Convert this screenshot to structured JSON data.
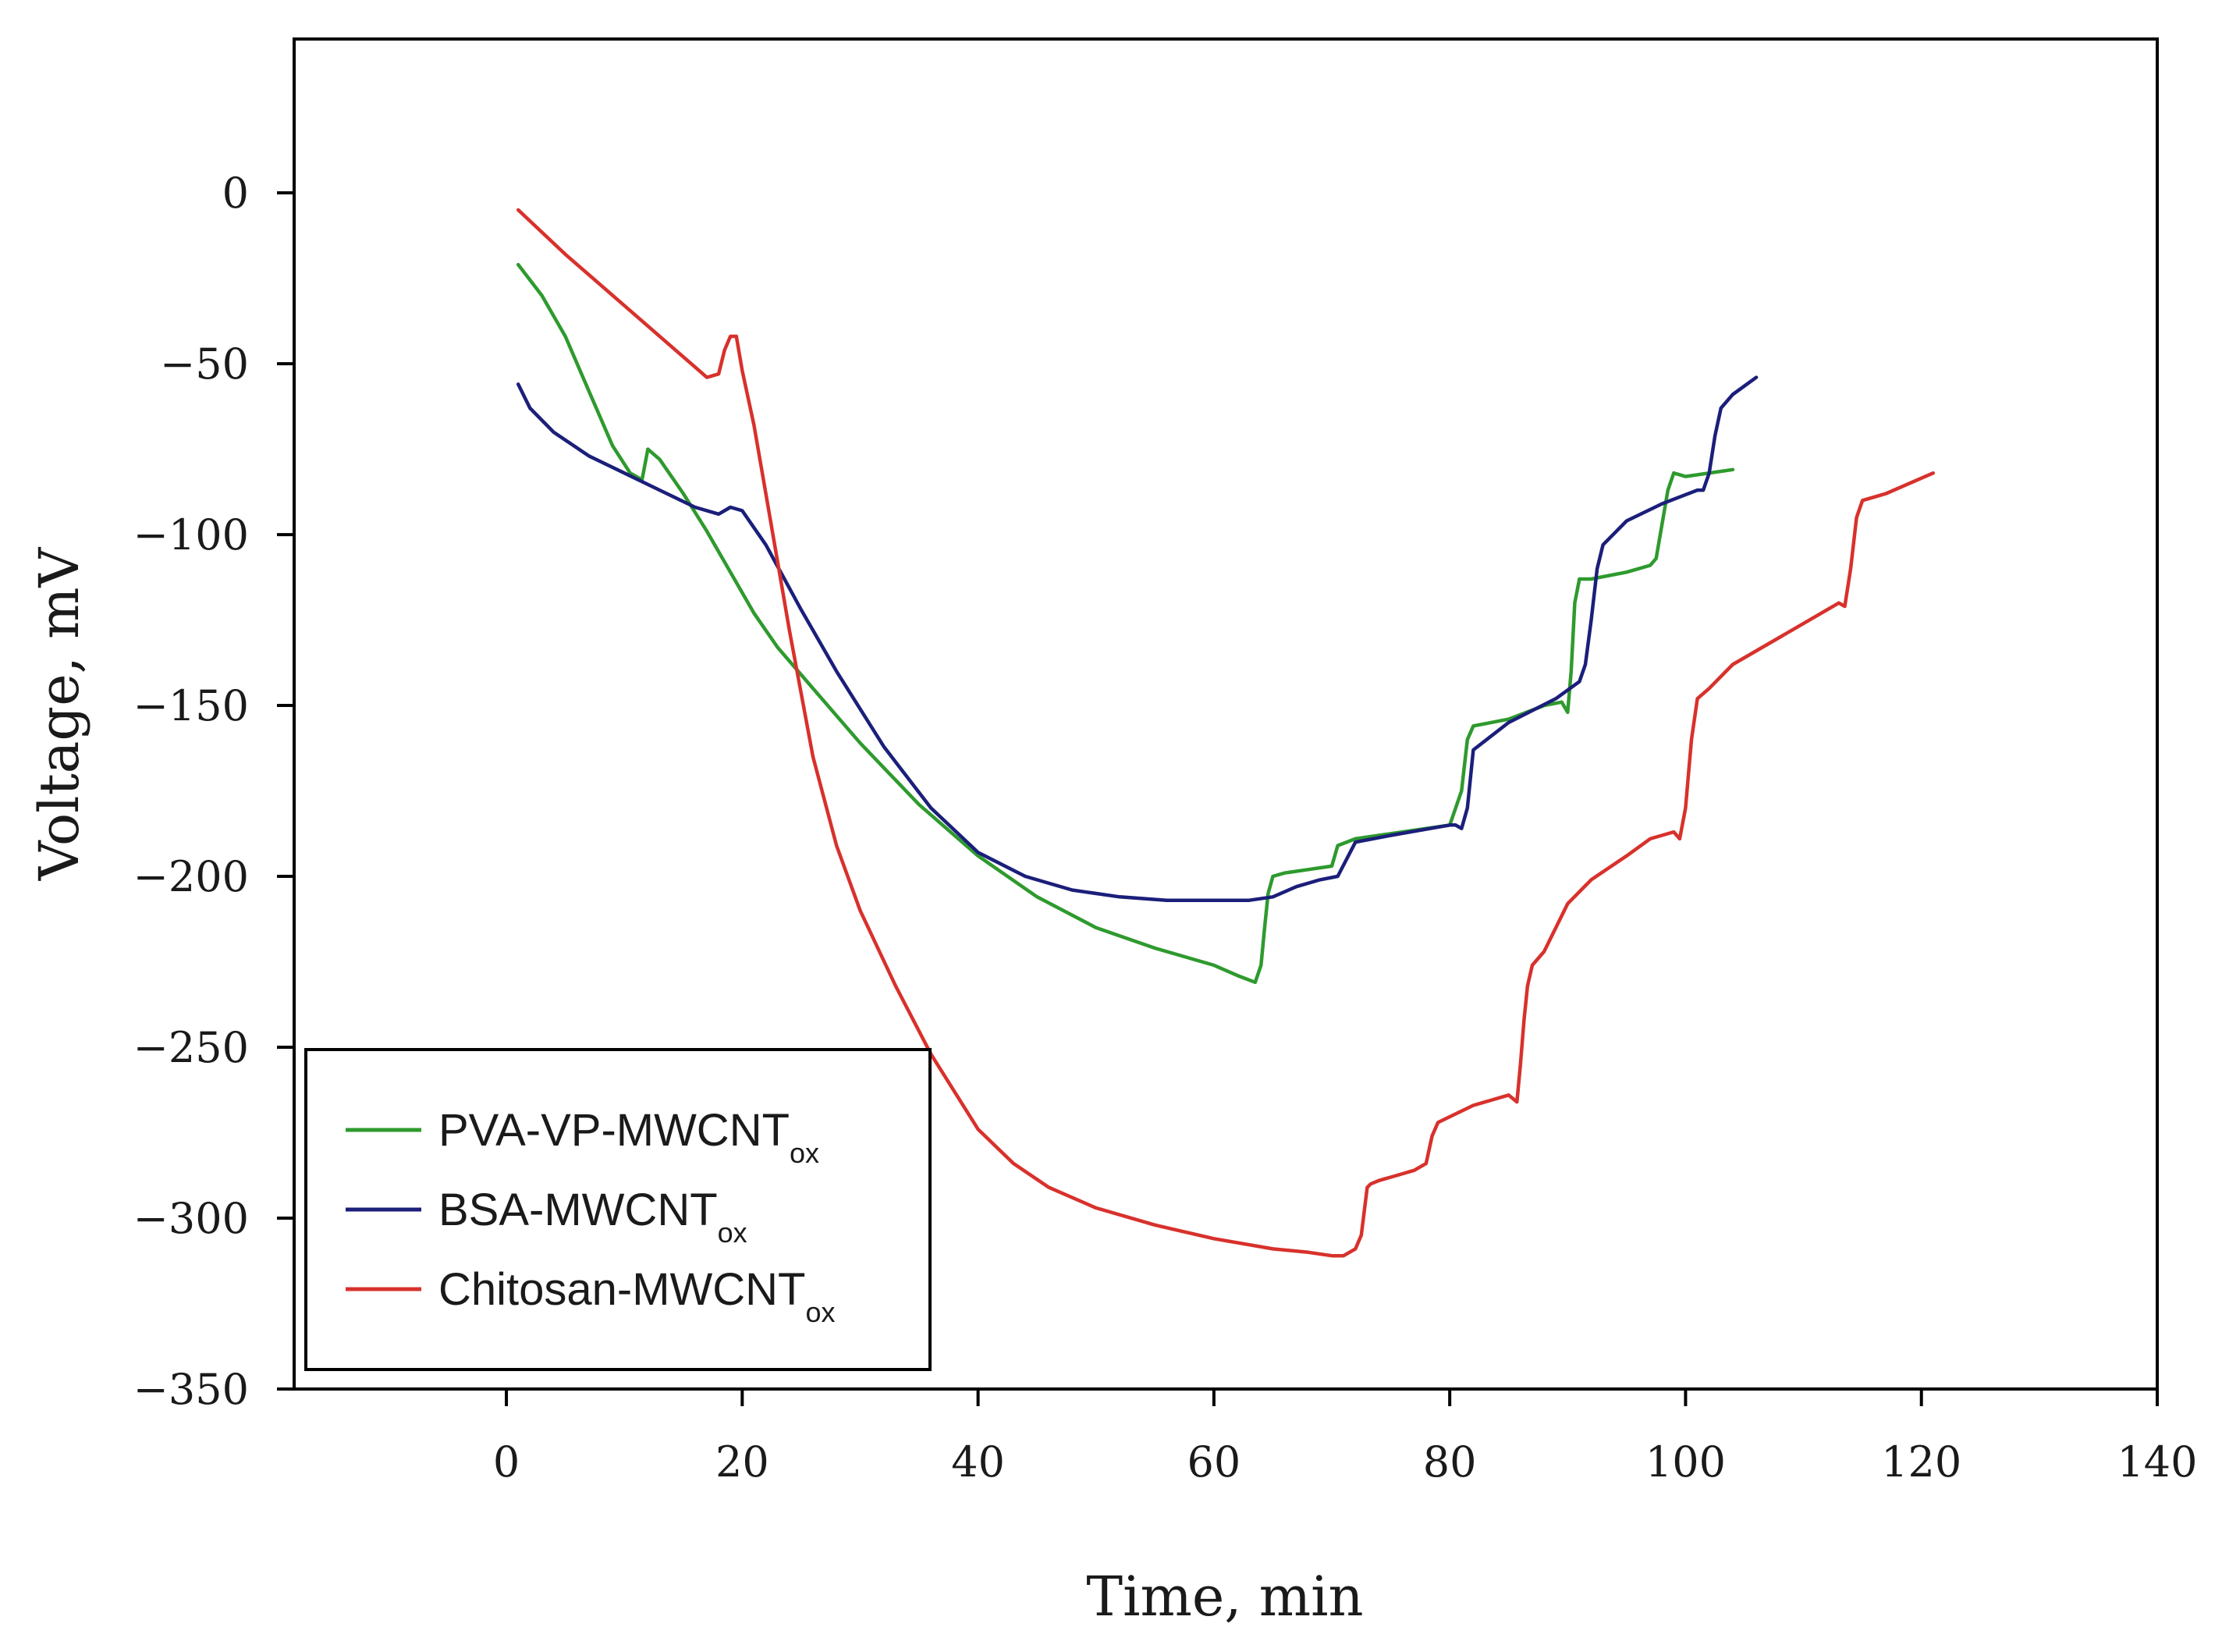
{
  "chart_data": {
    "type": "line",
    "xlabel": "Time, min",
    "ylabel": "Voltage, mV",
    "xlim": [
      -18,
      140
    ],
    "ylim": [
      -350,
      45
    ],
    "x_ticks": [
      0,
      20,
      40,
      60,
      80,
      100,
      120,
      140
    ],
    "x_tick_labels": [
      "0",
      "20",
      "40",
      "60",
      "80",
      "100",
      "120",
      "140"
    ],
    "y_ticks": [
      0,
      -50,
      -100,
      -150,
      -200,
      -250,
      -300,
      -350
    ],
    "y_tick_labels": [
      "0",
      "-50",
      "-100",
      "-150",
      "-200",
      "-250",
      "-300",
      "-350"
    ],
    "legend_position": "bottom-left",
    "series": [
      {
        "name": "PVA-VP-MWCNT",
        "subscript": "ox",
        "color": "#2e9a2e",
        "x": [
          1,
          3,
          5,
          7,
          9,
          10.5,
          11.5,
          12,
          13,
          15,
          17,
          19,
          21,
          23,
          26,
          30,
          35,
          40,
          45,
          50,
          55,
          60,
          62,
          63.5,
          64,
          64.3,
          64.6,
          65,
          66,
          68,
          70,
          70.5,
          72,
          76,
          80,
          81,
          81.5,
          82,
          85,
          88,
          89.5,
          90,
          90.3,
          90.6,
          91,
          92,
          95,
          97,
          97.5,
          98.5,
          99,
          100,
          104
        ],
        "y": [
          -21,
          -30,
          -42,
          -58,
          -74,
          -82,
          -84,
          -75,
          -78,
          -88,
          -99,
          -111,
          -123,
          -133,
          -145,
          -161,
          -179,
          -194,
          -206,
          -215,
          -221,
          -226,
          -229,
          -231,
          -226,
          -215,
          -205,
          -200,
          -199,
          -198,
          -197,
          -191,
          -189,
          -187,
          -185,
          -175,
          -160,
          -156,
          -154,
          -150,
          -149,
          -152,
          -140,
          -120,
          -113,
          -113,
          -111,
          -109,
          -107,
          -87,
          -82,
          -83,
          -81
        ]
      },
      {
        "name": "BSA-MWCNT",
        "subscript": "ox",
        "color": "#1b1f7a",
        "x": [
          1,
          2,
          4,
          7,
          10,
          13,
          16,
          18,
          19,
          20,
          22,
          25,
          28,
          32,
          36,
          40,
          44,
          48,
          52,
          56,
          60,
          63,
          65,
          67,
          69,
          70.5,
          72,
          75,
          80,
          80.5,
          81,
          81.5,
          82,
          85,
          89,
          91,
          91.5,
          92,
          92.5,
          93,
          95,
          98,
          101,
          101.5,
          102,
          102.5,
          103,
          104,
          106
        ],
        "y": [
          -56,
          -63,
          -70,
          -77,
          -82,
          -87,
          -92,
          -94,
          -92,
          -93,
          -103,
          -122,
          -140,
          -162,
          -180,
          -193,
          -200,
          -204,
          -206,
          -207,
          -207,
          -207,
          -206,
          -203,
          -201,
          -200,
          -190,
          -188,
          -185,
          -185,
          -186,
          -180,
          -163,
          -155,
          -148,
          -143,
          -138,
          -125,
          -110,
          -103,
          -96,
          -91,
          -87,
          -87,
          -82,
          -71,
          -63,
          -59,
          -54
        ]
      },
      {
        "name": "Chitosan-MWCNT",
        "subscript": "ox",
        "color": "#d8312c",
        "x": [
          1,
          5,
          10,
          15,
          17,
          18,
          18.5,
          19,
          19.5,
          20,
          21,
          22,
          24,
          26,
          28,
          30,
          33,
          36,
          40,
          43,
          46,
          50,
          55,
          60,
          65,
          68,
          70,
          71,
          72,
          72.5,
          73,
          73.3,
          74,
          75,
          76,
          77,
          78,
          78.5,
          79,
          82,
          85,
          85.7,
          86,
          86.3,
          86.6,
          87,
          88,
          89,
          90,
          92,
          95,
          97,
          99,
          99.5,
          100,
          100.5,
          101,
          102,
          104,
          108,
          112,
          113,
          113.5,
          114,
          114.5,
          115,
          117,
          121
        ],
        "y": [
          -5,
          -18,
          -33,
          -48,
          -54,
          -53,
          -46,
          -42,
          -42,
          -52,
          -68,
          -88,
          -128,
          -165,
          -191,
          -210,
          -232,
          -252,
          -274,
          -284,
          -291,
          -297,
          -302,
          -306,
          -309,
          -310,
          -311,
          -311,
          -309,
          -305,
          -291,
          -290,
          -289,
          -288,
          -287,
          -286,
          -284,
          -276,
          -272,
          -267,
          -264,
          -266,
          -255,
          -242,
          -232,
          -226,
          -222,
          -215,
          -208,
          -201,
          -194,
          -189,
          -187,
          -189,
          -180,
          -160,
          -148,
          -145,
          -138,
          -130,
          -122,
          -120,
          -121,
          -110,
          -95,
          -90,
          -88,
          -82
        ]
      }
    ]
  }
}
